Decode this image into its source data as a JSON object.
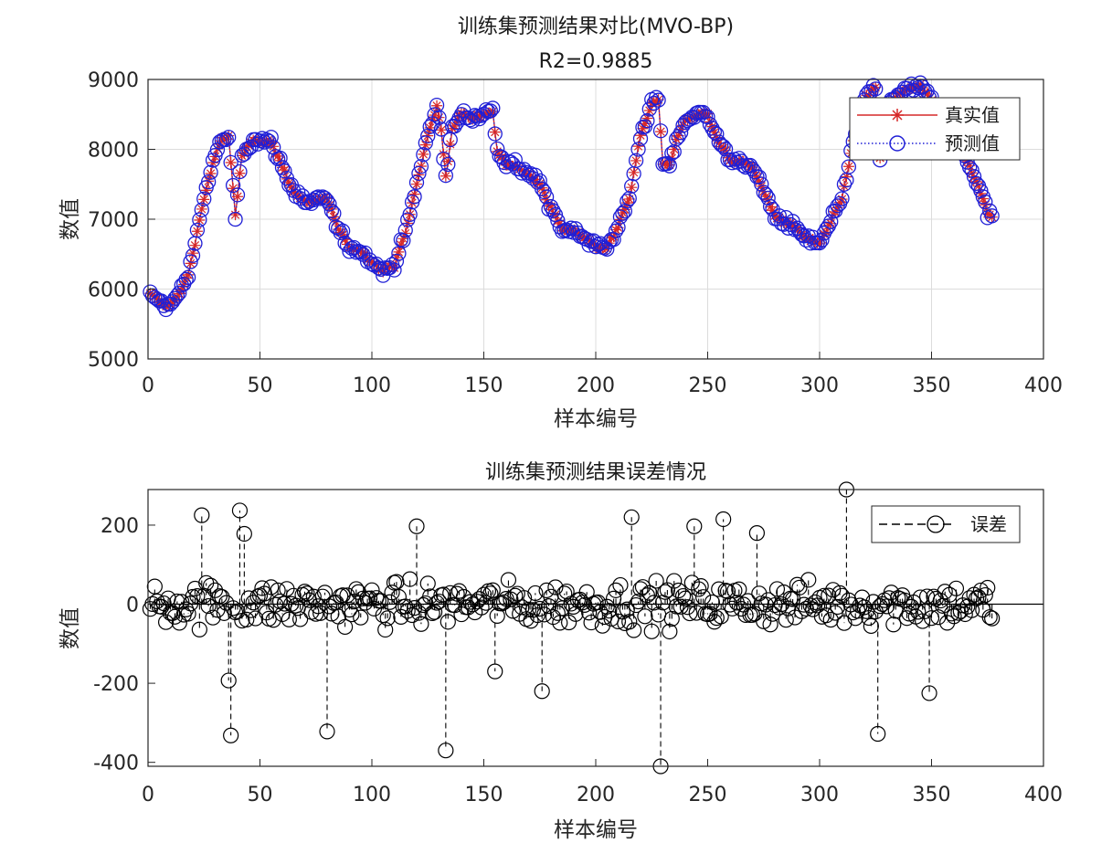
{
  "chart_data": [
    {
      "type": "line",
      "title": "训练集预测结果对比(MVO-BP)",
      "subtitle": "R2=0.9885",
      "xlabel": "样本编号",
      "ylabel": "数值",
      "xlim": [
        0,
        400
      ],
      "ylim": [
        5000,
        9000
      ],
      "xticks": [
        0,
        50,
        100,
        150,
        200,
        250,
        300,
        350,
        400
      ],
      "yticks": [
        5000,
        6000,
        7000,
        8000,
        9000
      ],
      "grid": true,
      "legend_position": "top-right",
      "colors": {
        "true": "#d62828",
        "pred": "#1f1fd6"
      },
      "anchors": [
        [
          1,
          5920
        ],
        [
          8,
          5760
        ],
        [
          12,
          5820
        ],
        [
          18,
          6200
        ],
        [
          25,
          7300
        ],
        [
          30,
          7900
        ],
        [
          33,
          8150
        ],
        [
          36,
          8180
        ],
        [
          39,
          7050
        ],
        [
          42,
          7900
        ],
        [
          47,
          8150
        ],
        [
          55,
          8100
        ],
        [
          60,
          7750
        ],
        [
          65,
          7400
        ],
        [
          70,
          7250
        ],
        [
          75,
          7250
        ],
        [
          80,
          7300
        ],
        [
          85,
          6850
        ],
        [
          90,
          6600
        ],
        [
          95,
          6550
        ],
        [
          100,
          6400
        ],
        [
          105,
          6250
        ],
        [
          110,
          6350
        ],
        [
          115,
          6800
        ],
        [
          120,
          7500
        ],
        [
          125,
          8200
        ],
        [
          129,
          8600
        ],
        [
          131,
          8300
        ],
        [
          133,
          7600
        ],
        [
          136,
          8300
        ],
        [
          140,
          8500
        ],
        [
          145,
          8450
        ],
        [
          150,
          8500
        ],
        [
          154,
          8550
        ],
        [
          156,
          8000
        ],
        [
          160,
          7800
        ],
        [
          165,
          7750
        ],
        [
          170,
          7650
        ],
        [
          175,
          7500
        ],
        [
          180,
          7150
        ],
        [
          185,
          6850
        ],
        [
          190,
          6850
        ],
        [
          195,
          6750
        ],
        [
          200,
          6600
        ],
        [
          205,
          6600
        ],
        [
          210,
          6900
        ],
        [
          215,
          7300
        ],
        [
          220,
          8200
        ],
        [
          225,
          8650
        ],
        [
          228,
          8700
        ],
        [
          230,
          7800
        ],
        [
          233,
          7750
        ],
        [
          236,
          8150
        ],
        [
          240,
          8400
        ],
        [
          245,
          8500
        ],
        [
          250,
          8500
        ],
        [
          255,
          8100
        ],
        [
          260,
          7850
        ],
        [
          265,
          7800
        ],
        [
          270,
          7750
        ],
        [
          275,
          7400
        ],
        [
          280,
          7050
        ],
        [
          285,
          6950
        ],
        [
          290,
          6850
        ],
        [
          295,
          6700
        ],
        [
          300,
          6650
        ],
        [
          305,
          6950
        ],
        [
          310,
          7300
        ],
        [
          315,
          8100
        ],
        [
          320,
          8700
        ],
        [
          325,
          8900
        ],
        [
          327,
          7850
        ],
        [
          330,
          8600
        ],
        [
          335,
          8800
        ],
        [
          340,
          8850
        ],
        [
          345,
          8900
        ],
        [
          350,
          8700
        ],
        [
          355,
          8250
        ],
        [
          360,
          8000
        ],
        [
          365,
          7900
        ],
        [
          370,
          7550
        ],
        [
          375,
          7100
        ],
        [
          377,
          7050
        ]
      ],
      "series": [
        {
          "name": "真实值",
          "style": "solid line with star markers"
        },
        {
          "name": "预测值",
          "style": "dotted line with circle markers"
        }
      ]
    },
    {
      "type": "scatter",
      "title": "训练集预测结果误差情况",
      "xlabel": "样本编号",
      "ylabel": "数值",
      "xlim": [
        0,
        400
      ],
      "ylim": [
        -410,
        290
      ],
      "xticks": [
        0,
        50,
        100,
        150,
        200,
        250,
        300,
        350,
        400
      ],
      "yticks": [
        -400,
        -200,
        0,
        200
      ],
      "grid": false,
      "legend_position": "top-right",
      "colors": {
        "error": "#000000"
      },
      "series": [
        {
          "name": "误差",
          "style": "dashed stems with circle markers"
        }
      ],
      "extremes": [
        [
          24,
          225
        ],
        [
          41,
          237
        ],
        [
          43,
          178
        ],
        [
          37,
          -332
        ],
        [
          36,
          -193
        ],
        [
          80,
          -322
        ],
        [
          120,
          197
        ],
        [
          133,
          -370
        ],
        [
          216,
          220
        ],
        [
          229,
          -410
        ],
        [
          244,
          197
        ],
        [
          257,
          215
        ],
        [
          272,
          180
        ],
        [
          312,
          290
        ],
        [
          326,
          -328
        ],
        [
          349,
          -225
        ],
        [
          176,
          -220
        ],
        [
          155,
          -170
        ]
      ]
    }
  ]
}
